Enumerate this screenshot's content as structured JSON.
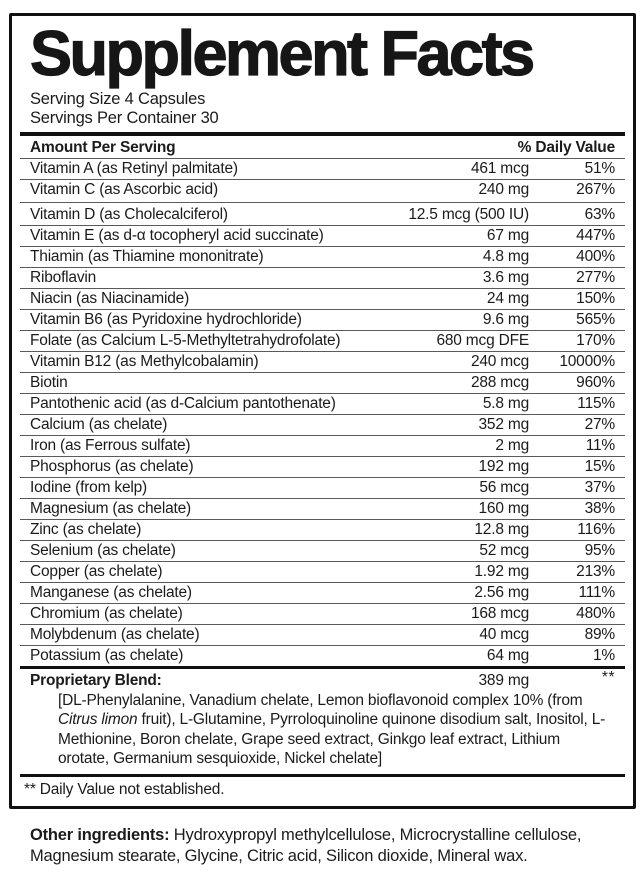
{
  "colors": {
    "ink": "#1b1b1b",
    "background": "#ffffff",
    "border": "#111111"
  },
  "title": "Supplement Facts",
  "serving": {
    "size": "Serving Size 4 Capsules",
    "per_container": "Servings Per Container 30"
  },
  "header": {
    "amount_label": "Amount Per Serving",
    "dv_label": "% Daily Value"
  },
  "rows": [
    {
      "name": "Vitamin A (as Retinyl palmitate)",
      "amount": "461 mcg",
      "dv": "51%"
    },
    {
      "name": "Vitamin C (as Ascorbic acid)",
      "amount": "240 mg",
      "dv": "267%"
    },
    {
      "name": "Vitamin D (as Cholecalciferol)",
      "amount": "12.5 mcg (500 IU)",
      "dv": "63%",
      "group_break": true
    },
    {
      "name": "Vitamin E (as d-α tocopheryl acid succinate)",
      "amount": "67 mg",
      "dv": "447%"
    },
    {
      "name": "Thiamin (as Thiamine mononitrate)",
      "amount": "4.8 mg",
      "dv": "400%"
    },
    {
      "name": "Riboflavin",
      "amount": "3.6 mg",
      "dv": "277%"
    },
    {
      "name": "Niacin (as Niacinamide)",
      "amount": "24 mg",
      "dv": "150%"
    },
    {
      "name": "Vitamin B6 (as Pyridoxine hydrochloride)",
      "amount": "9.6 mg",
      "dv": "565%"
    },
    {
      "name": "Folate (as Calcium L-5-Methyltetrahydrofolate)",
      "amount": "680 mcg DFE",
      "dv": "170%"
    },
    {
      "name": "Vitamin B12 (as Methylcobalamin)",
      "amount": "240 mcg",
      "dv": "10000%"
    },
    {
      "name": "Biotin",
      "amount": "288 mcg",
      "dv": "960%"
    },
    {
      "name": "Pantothenic acid (as d-Calcium pantothenate)",
      "amount": "5.8 mg",
      "dv": "115%"
    },
    {
      "name": "Calcium (as chelate)",
      "amount": "352 mg",
      "dv": "27%"
    },
    {
      "name": "Iron (as Ferrous sulfate)",
      "amount": "2 mg",
      "dv": "11%"
    },
    {
      "name": "Phosphorus (as chelate)",
      "amount": "192 mg",
      "dv": "15%"
    },
    {
      "name": "Iodine (from kelp)",
      "amount": "56 mcg",
      "dv": "37%"
    },
    {
      "name": "Magnesium (as chelate)",
      "amount": "160 mg",
      "dv": "38%"
    },
    {
      "name": "Zinc (as chelate)",
      "amount": "12.8 mg",
      "dv": "116%"
    },
    {
      "name": "Selenium (as chelate)",
      "amount": "52 mcg",
      "dv": "95%"
    },
    {
      "name": "Copper (as chelate)",
      "amount": "1.92 mg",
      "dv": "213%"
    },
    {
      "name": "Manganese (as chelate)",
      "amount": "2.56 mg",
      "dv": "111%"
    },
    {
      "name": "Chromium (as chelate)",
      "amount": "168 mcg",
      "dv": "480%"
    },
    {
      "name": "Molybdenum (as chelate)",
      "amount": "40 mcg",
      "dv": "89%"
    },
    {
      "name": "Potassium (as chelate)",
      "amount": "64 mg",
      "dv": "1%"
    }
  ],
  "blend": {
    "label": "Proprietary Blend:",
    "amount": "389 mg",
    "dv": "**",
    "description_prefix": "[DL-Phenylalanine, Vanadium chelate, Lemon bioflavonoid complex 10% (from ",
    "description_italic": "Citrus limon",
    "description_suffix": " fruit), L-Glutamine, Pyrroloquinoline quinone disodium salt, Inositol, L-Methionine, Boron chelate, Grape seed extract, Ginkgo leaf extract, Lithium orotate, Germanium sesquioxide, Nickel chelate]"
  },
  "footnote": "** Daily Value not established.",
  "other_ingredients": {
    "label": "Other ingredients:",
    "text": " Hydroxypropyl methylcellulose, Microcrystalline cellulose, Magnesium stearate, Glycine, Citric acid, Silicon dioxide, Mineral wax."
  }
}
